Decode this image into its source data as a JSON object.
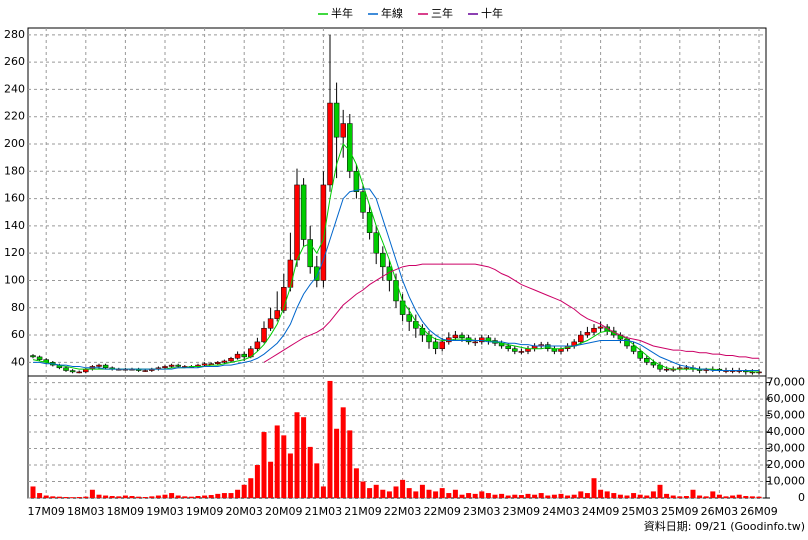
{
  "chart_data": {
    "type": "candlestick",
    "categories": [
      null,
      null,
      "17M09",
      null,
      null,
      null,
      null,
      null,
      "18M03",
      null,
      null,
      null,
      null,
      null,
      "18M09",
      null,
      null,
      null,
      null,
      null,
      "19M03",
      null,
      null,
      null,
      null,
      null,
      "19M09",
      null,
      null,
      null,
      null,
      null,
      "20M03",
      null,
      null,
      null,
      null,
      null,
      "20M09",
      null,
      null,
      null,
      null,
      null,
      "21M03",
      null,
      null,
      null,
      null,
      null,
      "21M09",
      null,
      null,
      null,
      null,
      null,
      "22M03",
      null,
      null,
      null,
      null,
      null,
      "22M09",
      null,
      null,
      null,
      null,
      null,
      "23M03",
      null,
      null,
      null,
      null,
      null,
      "23M09",
      null,
      null,
      null,
      null,
      null,
      "24M03",
      null,
      null,
      null,
      null,
      null,
      "24M09",
      null,
      null,
      null,
      null,
      null,
      "25M03",
      null,
      null,
      null,
      null,
      null,
      "25M09",
      null,
      null,
      null,
      null,
      null,
      "26M03",
      null,
      null,
      null,
      null,
      null,
      "26M09"
    ],
    "open": [
      45,
      44,
      42,
      40,
      38,
      36,
      34,
      33,
      33,
      35,
      37,
      38,
      36,
      35,
      35,
      35,
      35,
      34,
      34,
      35,
      36,
      37,
      38,
      37,
      37,
      37,
      38,
      39,
      39,
      40,
      41,
      43,
      46,
      44,
      50,
      55,
      65,
      72,
      78,
      95,
      115,
      170,
      130,
      110,
      100,
      170,
      230,
      205,
      215,
      180,
      165,
      150,
      135,
      120,
      110,
      100,
      85,
      75,
      70,
      65,
      60,
      55,
      50,
      55,
      58,
      60,
      58,
      55,
      55,
      58,
      56,
      54,
      52,
      50,
      48,
      48,
      50,
      52,
      53,
      50,
      48,
      50,
      52,
      55,
      60,
      62,
      65,
      66,
      63,
      60,
      57,
      52,
      48,
      43,
      40,
      38,
      35,
      35,
      35,
      36,
      36,
      35,
      34,
      35,
      35,
      34,
      34,
      34,
      34,
      33,
      33
    ],
    "high": [
      46,
      45,
      43,
      41,
      39,
      37,
      35,
      34,
      36,
      38,
      39,
      39,
      37,
      36,
      36,
      36,
      36,
      35,
      36,
      37,
      38,
      39,
      39,
      38,
      38,
      39,
      40,
      40,
      41,
      42,
      44,
      48,
      48,
      52,
      58,
      70,
      80,
      92,
      105,
      135,
      182,
      175,
      140,
      118,
      180,
      280,
      245,
      225,
      222,
      185,
      170,
      155,
      140,
      125,
      115,
      105,
      90,
      80,
      75,
      68,
      63,
      58,
      58,
      62,
      63,
      62,
      60,
      58,
      60,
      60,
      58,
      56,
      54,
      52,
      50,
      52,
      54,
      55,
      55,
      52,
      51,
      54,
      57,
      63,
      66,
      68,
      70,
      68,
      66,
      62,
      59,
      55,
      50,
      45,
      42,
      40,
      37,
      37,
      38,
      38,
      38,
      37,
      36,
      37,
      36,
      36,
      36,
      36,
      35,
      35,
      35
    ],
    "low": [
      43,
      41,
      39,
      37,
      35,
      33,
      32,
      32,
      32,
      34,
      35,
      35,
      34,
      34,
      34,
      34,
      33,
      33,
      33,
      34,
      35,
      36,
      36,
      36,
      36,
      36,
      37,
      38,
      38,
      39,
      40,
      42,
      41,
      43,
      48,
      54,
      63,
      70,
      76,
      92,
      110,
      125,
      105,
      95,
      95,
      165,
      175,
      190,
      175,
      160,
      145,
      130,
      112,
      100,
      92,
      80,
      70,
      63,
      58,
      55,
      50,
      46,
      48,
      53,
      56,
      55,
      53,
      52,
      53,
      53,
      52,
      50,
      48,
      46,
      46,
      46,
      48,
      50,
      48,
      46,
      46,
      48,
      50,
      53,
      58,
      60,
      62,
      60,
      58,
      54,
      50,
      46,
      41,
      38,
      36,
      33,
      33,
      33,
      34,
      34,
      33,
      32,
      32,
      33,
      33,
      32,
      32,
      32,
      31,
      31,
      31
    ],
    "close": [
      44,
      42,
      40,
      38,
      36,
      34,
      33,
      33,
      35,
      37,
      38,
      36,
      35,
      35,
      35,
      35,
      34,
      34,
      35,
      36,
      37,
      38,
      37,
      37,
      37,
      38,
      39,
      39,
      40,
      41,
      43,
      46,
      44,
      50,
      55,
      65,
      72,
      78,
      95,
      115,
      170,
      130,
      110,
      100,
      170,
      230,
      205,
      215,
      180,
      165,
      150,
      135,
      120,
      110,
      100,
      85,
      75,
      70,
      65,
      60,
      55,
      50,
      55,
      58,
      60,
      58,
      55,
      55,
      58,
      56,
      54,
      52,
      50,
      48,
      48,
      50,
      52,
      53,
      50,
      48,
      50,
      52,
      55,
      60,
      62,
      65,
      66,
      63,
      60,
      57,
      52,
      48,
      43,
      40,
      38,
      35,
      35,
      35,
      36,
      36,
      35,
      34,
      35,
      35,
      34,
      34,
      34,
      34,
      33,
      33,
      33
    ],
    "up_color": "#ff0000",
    "down_color": "#00cc00",
    "series": [
      {
        "name": "半年",
        "color": "#00cc00",
        "values": [
          42,
          41,
          40,
          39,
          38,
          37,
          36,
          35,
          35,
          35,
          35,
          35,
          35,
          35,
          35,
          35,
          35,
          35,
          35,
          35,
          35,
          36,
          36,
          36,
          37,
          37,
          37,
          38,
          38,
          39,
          40,
          41,
          42,
          44,
          48,
          53,
          60,
          68,
          80,
          95,
          115,
          125,
          127,
          120,
          130,
          160,
          185,
          200,
          195,
          185,
          170,
          155,
          140,
          128,
          115,
          100,
          85,
          78,
          70,
          65,
          60,
          57,
          56,
          56,
          57,
          57,
          57,
          56,
          56,
          56,
          55,
          54,
          53,
          52,
          51,
          50,
          50,
          50,
          51,
          50,
          50,
          51,
          52,
          54,
          56,
          59,
          62,
          63,
          62,
          60,
          57,
          53,
          49,
          45,
          41,
          38,
          36,
          35,
          35,
          35,
          35,
          35,
          35,
          35,
          34,
          34,
          34,
          34,
          34,
          33,
          33
        ]
      },
      {
        "name": "年線",
        "color": "#0066cc",
        "values": [
          40,
          40,
          39,
          39,
          38,
          38,
          37,
          37,
          36,
          36,
          36,
          35,
          35,
          35,
          35,
          35,
          35,
          35,
          35,
          35,
          35,
          35,
          36,
          36,
          36,
          36,
          37,
          37,
          37,
          38,
          38,
          39,
          40,
          41,
          43,
          46,
          50,
          54,
          60,
          68,
          80,
          90,
          97,
          103,
          115,
          130,
          145,
          160,
          165,
          166,
          167,
          167,
          160,
          145,
          130,
          115,
          100,
          88,
          78,
          70,
          64,
          60,
          57,
          56,
          56,
          56,
          56,
          56,
          56,
          55,
          55,
          55,
          54,
          54,
          53,
          53,
          52,
          52,
          52,
          52,
          52,
          52,
          52,
          53,
          54,
          55,
          56,
          56,
          56,
          56,
          56,
          55,
          53,
          50,
          47,
          44,
          42,
          40,
          38,
          37,
          36,
          35,
          35,
          34,
          34,
          34,
          34,
          34,
          34,
          34,
          34
        ]
      },
      {
        "name": "三年",
        "color": "#cc0066",
        "values": [
          null,
          null,
          null,
          null,
          null,
          null,
          null,
          null,
          null,
          null,
          null,
          null,
          null,
          null,
          null,
          null,
          null,
          null,
          null,
          null,
          null,
          null,
          null,
          null,
          null,
          null,
          null,
          null,
          null,
          null,
          null,
          null,
          null,
          null,
          null,
          40,
          43,
          46,
          49,
          52,
          55,
          58,
          60,
          62,
          65,
          70,
          76,
          82,
          86,
          90,
          93,
          97,
          100,
          103,
          106,
          108,
          110,
          111,
          111,
          112,
          112,
          112,
          112,
          112,
          112,
          112,
          112,
          112,
          111,
          110,
          108,
          105,
          103,
          100,
          97,
          95,
          93,
          91,
          89,
          87,
          85,
          82,
          79,
          75,
          72,
          70,
          68,
          65,
          62,
          60,
          58,
          57,
          56,
          54,
          52,
          51,
          50,
          49,
          49,
          48,
          48,
          47,
          47,
          46,
          46,
          45,
          45,
          44,
          44,
          43,
          43
        ]
      },
      {
        "name": "十年",
        "color": "#660099",
        "values": [
          null,
          null,
          null,
          null,
          null,
          null,
          null,
          null,
          null,
          null,
          null,
          null,
          null,
          null,
          null,
          null,
          null,
          null,
          null,
          null,
          null,
          null,
          null,
          null,
          null,
          null,
          null,
          null,
          null,
          null,
          null,
          null,
          null,
          null,
          null,
          null,
          null,
          null,
          null,
          null,
          null,
          null,
          null,
          null,
          null,
          null,
          null,
          null,
          null,
          null,
          null,
          null,
          null,
          null,
          null,
          null,
          null,
          null,
          null,
          null,
          null,
          null,
          null,
          null,
          null,
          null,
          null,
          null,
          null,
          null,
          null,
          null,
          null,
          null,
          null,
          null,
          null,
          null,
          null,
          null,
          null,
          null,
          null,
          null,
          null,
          null,
          null,
          null,
          null,
          null,
          null,
          null,
          null,
          null,
          null,
          null,
          null,
          null,
          null,
          null,
          null,
          null,
          null,
          null,
          null,
          null,
          null,
          null,
          null,
          null,
          null
        ]
      }
    ],
    "volume": {
      "color": "#ff0000",
      "values": [
        7000,
        3000,
        1500,
        1000,
        800,
        600,
        500,
        600,
        800,
        5000,
        2000,
        1500,
        1200,
        1000,
        1500,
        1200,
        800,
        600,
        1000,
        1500,
        2000,
        3000,
        1500,
        1000,
        800,
        1200,
        1500,
        1800,
        2500,
        3000,
        3000,
        5000,
        8000,
        12000,
        20000,
        40000,
        22000,
        44000,
        38000,
        27000,
        52000,
        49000,
        31000,
        21000,
        7000,
        71000,
        42000,
        55000,
        41000,
        18000,
        10000,
        6000,
        8000,
        5000,
        4000,
        7000,
        11000,
        6000,
        4000,
        8000,
        5000,
        4000,
        6000,
        3000,
        5000,
        2000,
        3000,
        2500,
        4000,
        3000,
        2000,
        2500,
        1500,
        2000,
        1800,
        2500,
        2000,
        3000,
        1500,
        2000,
        2500,
        1500,
        2000,
        4000,
        3000,
        12000,
        5000,
        4000,
        3000,
        2000,
        1500,
        3000,
        2000,
        1500,
        4000,
        8000,
        2500,
        1500,
        1000,
        1200,
        5000,
        1500,
        1000,
        4000,
        2000,
        1000,
        1500,
        2000,
        1200,
        1000,
        800
      ]
    },
    "ylim": [
      30,
      285
    ],
    "yticks": [
      40,
      60,
      80,
      100,
      120,
      140,
      160,
      180,
      200,
      220,
      240,
      260,
      280
    ],
    "y2lim": [
      0,
      74000
    ],
    "y2ticks": [
      0,
      {
        "value": 10000,
        "label": "10,000"
      },
      {
        "value": 20000,
        "label": "20,000"
      },
      {
        "value": 30000,
        "label": "30,000"
      },
      {
        "value": 40000,
        "label": "40,000"
      },
      {
        "value": 50000,
        "label": "50,000"
      },
      {
        "value": 60000,
        "label": "60,000"
      },
      {
        "value": 70000,
        "label": "70,000"
      }
    ],
    "grid": true,
    "footer": "資料日期: 09/21 (Goodinfo.tw)"
  }
}
